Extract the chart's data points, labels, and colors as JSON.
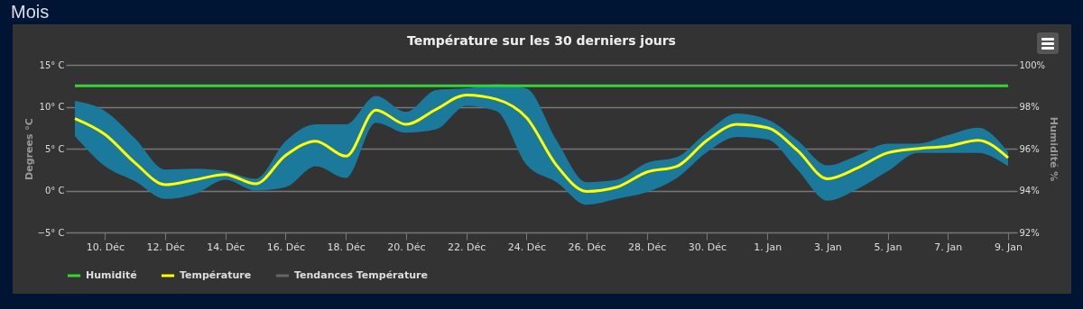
{
  "chart_data": {
    "type": "line",
    "title": "Température sur les 30 derniers jours",
    "ylabel": "Degrees °C",
    "y2label": "Humidité %",
    "annotations": [
      "Mois"
    ],
    "categories": [
      null,
      "10. Déc",
      null,
      "12. Déc",
      null,
      "14. Déc",
      null,
      "16. Déc",
      null,
      "18. Déc",
      null,
      "20. Déc",
      null,
      "22. Déc",
      null,
      "24. Déc",
      null,
      "26. Déc",
      null,
      "28. Déc",
      null,
      "30. Déc",
      null,
      "1. Jan",
      null,
      "3. Jan",
      null,
      "5. Jan",
      null,
      "7. Jan",
      null,
      "9. Jan"
    ],
    "series": [
      {
        "name": "Humidité",
        "color": "#33d633",
        "axis": "y2",
        "values": [
          99,
          99,
          99,
          99,
          99,
          99,
          99,
          99,
          99,
          99,
          99,
          99,
          99,
          99,
          99,
          99,
          99,
          99,
          99,
          99,
          99,
          99,
          99,
          99,
          99,
          99,
          99,
          99,
          99,
          99,
          99,
          99
        ]
      },
      {
        "name": "Température",
        "color": "#ffff00",
        "values": [
          8.6,
          6.7,
          3.3,
          0.7,
          1.3,
          1.9,
          0.8,
          4.2,
          5.9,
          4.1,
          9.6,
          7.9,
          9.7,
          11.4,
          10.9,
          8.7,
          3.0,
          -0.1,
          0.4,
          2.2,
          2.9,
          6.0,
          7.9,
          7.5,
          4.8,
          1.4,
          2.7,
          4.5,
          5.0,
          5.3,
          6.0,
          3.9
        ],
        "lower": [
          6.5,
          2.9,
          1.1,
          -1.0,
          -0.4,
          1.3,
          0.0,
          0.4,
          2.9,
          1.5,
          8.1,
          6.9,
          7.3,
          10.1,
          9.5,
          3.1,
          1.0,
          -1.7,
          -1.0,
          -0.2,
          1.5,
          4.6,
          6.4,
          6.1,
          2.5,
          -1.2,
          0.2,
          2.3,
          4.5,
          4.5,
          4.5,
          2.9
        ],
        "upper": [
          10.7,
          9.5,
          6.2,
          2.5,
          2.6,
          2.3,
          1.4,
          5.9,
          7.9,
          7.9,
          11.3,
          9.4,
          12.0,
          12.2,
          12.7,
          12.2,
          6.0,
          1.0,
          1.3,
          3.3,
          4.0,
          7.0,
          9.2,
          8.5,
          6.0,
          3.0,
          4.2,
          5.6,
          5.6,
          6.6,
          7.5,
          4.6
        ]
      },
      {
        "name": "Tendances Température",
        "color": "#666666",
        "values": [
          null,
          null,
          null,
          null,
          null,
          null,
          null,
          null,
          null,
          null,
          null,
          null,
          null,
          null,
          null,
          null,
          null,
          null,
          null,
          null,
          null,
          null,
          null,
          null,
          null,
          null,
          null,
          null,
          null,
          null,
          null,
          null
        ]
      }
    ],
    "ylim": [
      -5,
      15
    ],
    "yticks": [
      {
        "value": -5,
        "label": "−5° C"
      },
      {
        "value": 0,
        "label": "0° C"
      },
      {
        "value": 5,
        "label": "5° C"
      },
      {
        "value": 10,
        "label": "10° C"
      },
      {
        "value": 15,
        "label": "15° C"
      }
    ],
    "y2lim": [
      92,
      100
    ],
    "y2ticks": [
      {
        "value": 92,
        "label": "92%"
      },
      {
        "value": 94,
        "label": "94%"
      },
      {
        "value": 96,
        "label": "96%"
      },
      {
        "value": 98,
        "label": "98%"
      },
      {
        "value": 100,
        "label": "100%"
      }
    ],
    "grid": "y",
    "legend": "bottom",
    "marker": "none",
    "line_style": "solid"
  }
}
